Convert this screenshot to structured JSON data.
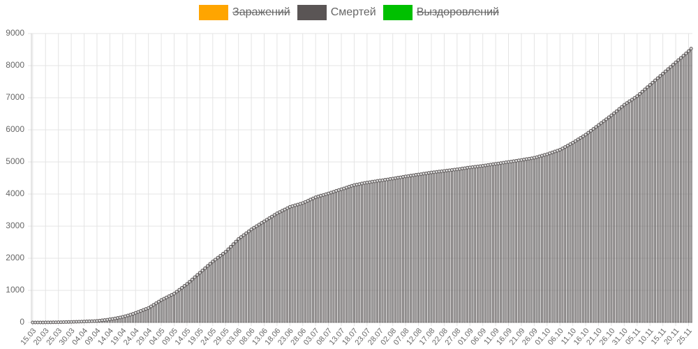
{
  "chart_data": {
    "type": "bar",
    "categories": [
      "15.03",
      null,
      null,
      null,
      null,
      "20.03",
      null,
      null,
      null,
      null,
      "25.03",
      null,
      null,
      null,
      null,
      "30.03",
      null,
      null,
      null,
      null,
      "04.04",
      null,
      null,
      null,
      null,
      "09.04",
      null,
      null,
      null,
      null,
      "14.04",
      null,
      null,
      null,
      null,
      "19.04",
      null,
      null,
      null,
      null,
      "24.04",
      null,
      null,
      null,
      null,
      "29.04",
      null,
      null,
      null,
      null,
      "04.05",
      null,
      null,
      null,
      null,
      "09.05",
      null,
      null,
      null,
      null,
      "14.05",
      null,
      null,
      null,
      null,
      "19.05",
      null,
      null,
      null,
      null,
      "24.05",
      null,
      null,
      null,
      null,
      "29.05",
      null,
      null,
      null,
      null,
      "03.06",
      null,
      null,
      null,
      null,
      "08.06",
      null,
      null,
      null,
      null,
      "13.06",
      null,
      null,
      null,
      null,
      "18.06",
      null,
      null,
      null,
      null,
      "23.06",
      null,
      null,
      null,
      null,
      "28.06",
      null,
      null,
      null,
      null,
      "03.07",
      null,
      null,
      null,
      null,
      "08.07",
      null,
      null,
      null,
      null,
      "13.07",
      null,
      null,
      null,
      null,
      "18.07",
      null,
      null,
      null,
      null,
      "23.07",
      null,
      null,
      null,
      null,
      "28.07",
      null,
      null,
      null,
      null,
      "02.08",
      null,
      null,
      null,
      null,
      "07.08",
      null,
      null,
      null,
      null,
      "12.08",
      null,
      null,
      null,
      null,
      "17.08",
      null,
      null,
      null,
      null,
      "22.08",
      null,
      null,
      null,
      null,
      "27.08",
      null,
      null,
      null,
      null,
      "01.09",
      null,
      null,
      null,
      null,
      "06.09",
      null,
      null,
      null,
      null,
      "11.09",
      null,
      null,
      null,
      null,
      "16.09",
      null,
      null,
      null,
      null,
      "21.09",
      null,
      null,
      null,
      null,
      "26.09",
      null,
      null,
      null,
      null,
      "01.10",
      null,
      null,
      null,
      null,
      "06.10",
      null,
      null,
      null,
      null,
      "11.10",
      null,
      null,
      null,
      null,
      "16.10",
      null,
      null,
      null,
      null,
      "21.10",
      null,
      null,
      null,
      null,
      "26.10",
      null,
      null,
      null,
      null,
      "31.10",
      null,
      null,
      null,
      null,
      "05.11",
      null,
      null,
      null,
      null,
      "10.11",
      null,
      null,
      null,
      null,
      "15.11",
      null,
      null,
      null,
      null,
      "20.11",
      null,
      null,
      null,
      null,
      "25.11",
      null
    ],
    "series": [
      {
        "name": "Заражений",
        "color": "#ffa500",
        "hidden": true
      },
      {
        "name": "Смертей",
        "color": "#5a5555",
        "hidden": false,
        "values": [
          0,
          0,
          0,
          1,
          1,
          2,
          3,
          4,
          5,
          6,
          8,
          9,
          11,
          13,
          15,
          17,
          19,
          22,
          25,
          28,
          31,
          34,
          37,
          40,
          43,
          50,
          58,
          67,
          76,
          85,
          100,
          112,
          125,
          140,
          156,
          175,
          195,
          218,
          243,
          270,
          300,
          330,
          360,
          390,
          420,
          450,
          500,
          550,
          600,
          650,
          700,
          740,
          780,
          820,
          860,
          900,
          960,
          1020,
          1080,
          1140,
          1200,
          1270,
          1340,
          1410,
          1480,
          1550,
          1620,
          1690,
          1760,
          1830,
          1900,
          1960,
          2020,
          2080,
          2140,
          2200,
          2280,
          2360,
          2440,
          2520,
          2600,
          2660,
          2720,
          2780,
          2840,
          2900,
          2950,
          3000,
          3050,
          3100,
          3150,
          3200,
          3250,
          3300,
          3350,
          3400,
          3440,
          3480,
          3520,
          3560,
          3600,
          3625,
          3650,
          3670,
          3695,
          3720,
          3755,
          3790,
          3830,
          3865,
          3900,
          3925,
          3950,
          3970,
          3995,
          4020,
          4045,
          4070,
          4100,
          4125,
          4150,
          4175,
          4200,
          4230,
          4255,
          4280,
          4295,
          4310,
          4330,
          4345,
          4360,
          4370,
          4385,
          4395,
          4410,
          4420,
          4430,
          4445,
          4455,
          4470,
          4480,
          4495,
          4510,
          4520,
          4535,
          4550,
          4560,
          4575,
          4585,
          4600,
          4610,
          4620,
          4635,
          4645,
          4660,
          4670,
          4680,
          4690,
          4700,
          4710,
          4720,
          4730,
          4740,
          4750,
          4760,
          4770,
          4780,
          4795,
          4805,
          4820,
          4830,
          4840,
          4850,
          4860,
          4870,
          4880,
          4890,
          4905,
          4915,
          4930,
          4940,
          4950,
          4965,
          4975,
          4990,
          5000,
          5010,
          5025,
          5035,
          5050,
          5060,
          5075,
          5090,
          5100,
          5115,
          5130,
          5150,
          5175,
          5195,
          5220,
          5240,
          5270,
          5295,
          5325,
          5350,
          5380,
          5420,
          5465,
          5510,
          5555,
          5600,
          5650,
          5700,
          5750,
          5800,
          5850,
          5910,
          5970,
          6030,
          6090,
          6150,
          6210,
          6270,
          6330,
          6390,
          6450,
          6515,
          6580,
          6650,
          6715,
          6780,
          6835,
          6890,
          6940,
          6995,
          7050,
          7120,
          7190,
          7260,
          7330,
          7400,
          7470,
          7540,
          7610,
          7680,
          7750,
          7820,
          7890,
          7960,
          8030,
          8100,
          8170,
          8240,
          8310,
          8380,
          8450,
          8530
        ]
      },
      {
        "name": "Выздоровлений",
        "color": "#00c000",
        "hidden": true
      }
    ],
    "ylim": [
      0,
      9000
    ],
    "yticks": [
      0,
      1000,
      2000,
      3000,
      4000,
      5000,
      6000,
      7000,
      8000,
      9000
    ],
    "grid": true
  }
}
